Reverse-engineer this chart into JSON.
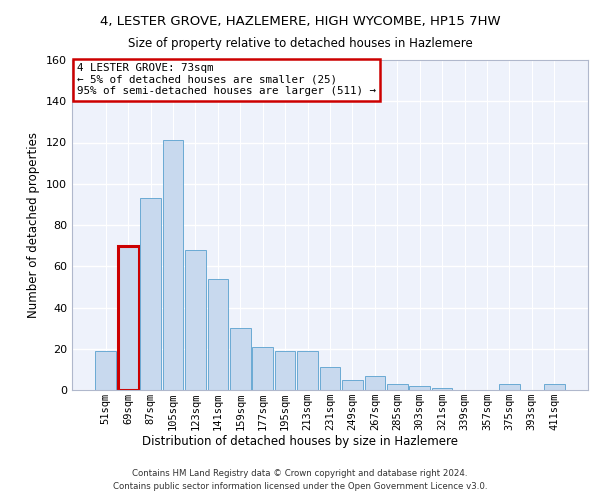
{
  "title": "4, LESTER GROVE, HAZLEMERE, HIGH WYCOMBE, HP15 7HW",
  "subtitle": "Size of property relative to detached houses in Hazlemere",
  "xlabel": "Distribution of detached houses by size in Hazlemere",
  "ylabel": "Number of detached properties",
  "bar_color": "#c8d9ee",
  "bar_edge_color": "#6aaad4",
  "highlight_color": "#cc0000",
  "background_color": "#eef2fb",
  "grid_color": "#ffffff",
  "categories": [
    "51sqm",
    "69sqm",
    "87sqm",
    "105sqm",
    "123sqm",
    "141sqm",
    "159sqm",
    "177sqm",
    "195sqm",
    "213sqm",
    "231sqm",
    "249sqm",
    "267sqm",
    "285sqm",
    "303sqm",
    "321sqm",
    "339sqm",
    "357sqm",
    "375sqm",
    "393sqm",
    "411sqm"
  ],
  "values": [
    19,
    70,
    93,
    121,
    68,
    54,
    30,
    21,
    19,
    19,
    11,
    5,
    7,
    3,
    2,
    1,
    0,
    0,
    3,
    0,
    3
  ],
  "ylim": [
    0,
    160
  ],
  "yticks": [
    0,
    20,
    40,
    60,
    80,
    100,
    120,
    140,
    160
  ],
  "annotation_box_text": "4 LESTER GROVE: 73sqm\n← 5% of detached houses are smaller (25)\n95% of semi-detached houses are larger (511) →",
  "highlight_bar_index": 1,
  "footer_line1": "Contains HM Land Registry data © Crown copyright and database right 2024.",
  "footer_line2": "Contains public sector information licensed under the Open Government Licence v3.0."
}
